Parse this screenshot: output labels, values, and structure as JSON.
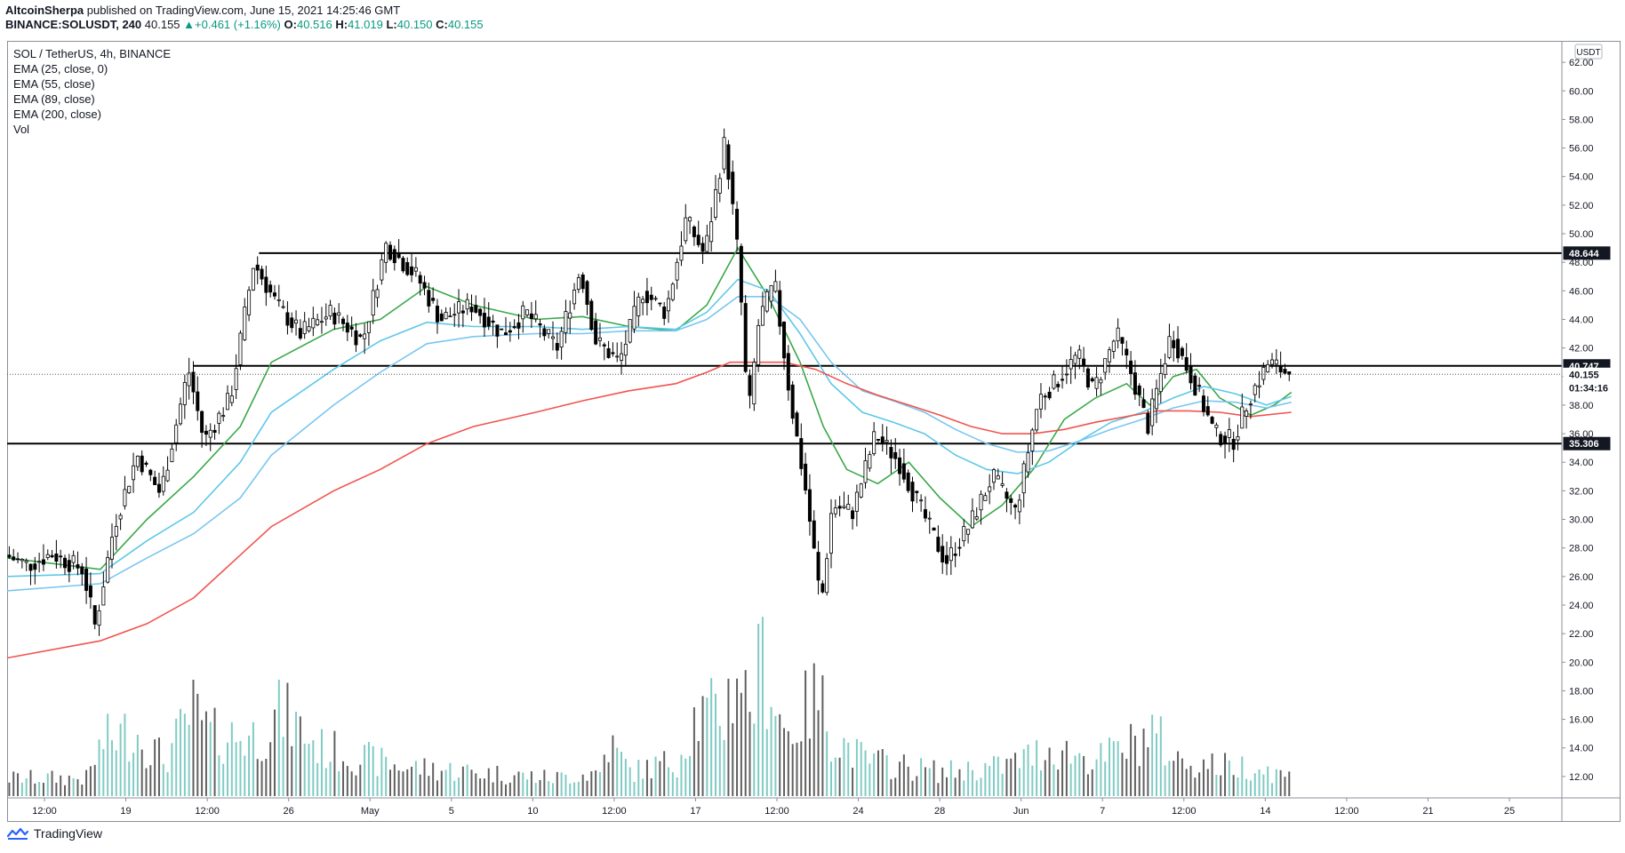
{
  "header": {
    "author": "AltcoinSherpa",
    "published": " published on TradingView.com, June 15, 2021 14:25:46 GMT",
    "symbol": "BINANCE:SOLUSDT, 240",
    "last": "40.155",
    "change": "+0.461 (+1.16%)",
    "o_label": "O:",
    "o_val": "40.516",
    "h_label": "H:",
    "h_val": "41.019",
    "l_label": "L:",
    "l_val": "40.150",
    "c_label": "C:",
    "c_val": "40.155"
  },
  "legend": {
    "title": "SOL / TetherUS, 4h, BINANCE",
    "ema25": "EMA (25, close, 0)",
    "ema55": "EMA (55, close)",
    "ema89": "EMA (89, close)",
    "ema200": "EMA (200, close)",
    "vol": "Vol"
  },
  "footer": {
    "brand": "TradingView"
  },
  "colors": {
    "up": "#ffffff",
    "down": "#000000",
    "ema25": "#3aa84a",
    "ema55": "#5ec8e8",
    "ema89": "#7ac6f0",
    "ema200": "#f0544f",
    "vol_up": "#80cbc4",
    "vol_down": "#606060"
  },
  "chart_data": {
    "type": "candlestick",
    "title": "SOL / TetherUS, 4h, BINANCE",
    "currency": "USDT",
    "ylim": [
      10.5,
      63.5
    ],
    "y_ticks": [
      12,
      14,
      16,
      18,
      20,
      22,
      24,
      26,
      28,
      30,
      32,
      34,
      36,
      38,
      40,
      42,
      44,
      46,
      48,
      50,
      52,
      54,
      56,
      58,
      60,
      62
    ],
    "x_ticks": [
      "12:00",
      "19",
      "12:00",
      "26",
      "May",
      "5",
      "10",
      "12:00",
      "17",
      "12:00",
      "24",
      "28",
      "Jun",
      "7",
      "12:00",
      "14",
      "12:00",
      "21",
      "25"
    ],
    "price_labels": [
      {
        "label": "48.644",
        "value": 48.644,
        "style": "dark"
      },
      {
        "label": "40.747",
        "value": 40.747,
        "style": "dark"
      },
      {
        "label": "40.155",
        "value": 40.155,
        "style": "white"
      },
      {
        "label": "01:34:16",
        "value": 39.2,
        "style": "white"
      },
      {
        "label": "35.306",
        "value": 35.306,
        "style": "dark"
      }
    ],
    "horizontal_levels": [
      {
        "value": 48.644,
        "start": 0.162
      },
      {
        "value": 40.747,
        "start": 0.12
      },
      {
        "value": 35.306,
        "start": 0.0
      }
    ],
    "last_price": 40.155,
    "price_path": [
      [
        0,
        27.5
      ],
      [
        0.015,
        26.8
      ],
      [
        0.03,
        27.6
      ],
      [
        0.05,
        26.5
      ],
      [
        0.058,
        22.5
      ],
      [
        0.07,
        29.5
      ],
      [
        0.085,
        34.5
      ],
      [
        0.1,
        31.8
      ],
      [
        0.118,
        40.5
      ],
      [
        0.128,
        35.5
      ],
      [
        0.145,
        38.5
      ],
      [
        0.16,
        48.0
      ],
      [
        0.175,
        45.0
      ],
      [
        0.19,
        43.0
      ],
      [
        0.21,
        44.5
      ],
      [
        0.23,
        42.5
      ],
      [
        0.245,
        49.2
      ],
      [
        0.265,
        47.0
      ],
      [
        0.28,
        44.0
      ],
      [
        0.3,
        45.0
      ],
      [
        0.32,
        43.0
      ],
      [
        0.335,
        44.5
      ],
      [
        0.355,
        42.0
      ],
      [
        0.37,
        47.5
      ],
      [
        0.38,
        42.5
      ],
      [
        0.395,
        41.0
      ],
      [
        0.41,
        46.0
      ],
      [
        0.425,
        44.5
      ],
      [
        0.438,
        51.0
      ],
      [
        0.45,
        48.5
      ],
      [
        0.463,
        56.5
      ],
      [
        0.472,
        48.0
      ],
      [
        0.478,
        37.0
      ],
      [
        0.485,
        44.0
      ],
      [
        0.495,
        46.5
      ],
      [
        0.505,
        38.5
      ],
      [
        0.515,
        32.0
      ],
      [
        0.525,
        24.0
      ],
      [
        0.532,
        31.0
      ],
      [
        0.545,
        30.5
      ],
      [
        0.56,
        36.0
      ],
      [
        0.575,
        34.0
      ],
      [
        0.59,
        30.5
      ],
      [
        0.605,
        27.0
      ],
      [
        0.62,
        29.5
      ],
      [
        0.635,
        33.0
      ],
      [
        0.65,
        30.5
      ],
      [
        0.665,
        38.5
      ],
      [
        0.675,
        39.5
      ],
      [
        0.69,
        41.5
      ],
      [
        0.7,
        39.0
      ],
      [
        0.715,
        43.0
      ],
      [
        0.725,
        40.0
      ],
      [
        0.735,
        36.5
      ],
      [
        0.75,
        43.0
      ],
      [
        0.765,
        39.5
      ],
      [
        0.778,
        36.0
      ],
      [
        0.79,
        35.5
      ],
      [
        0.8,
        38.5
      ],
      [
        0.813,
        41.0
      ],
      [
        0.826,
        40.155
      ]
    ],
    "series": [
      {
        "name": "EMA (25, close, 0)",
        "points": [
          [
            0,
            27.3
          ],
          [
            0.06,
            26.5
          ],
          [
            0.09,
            30.0
          ],
          [
            0.12,
            33.0
          ],
          [
            0.15,
            36.5
          ],
          [
            0.17,
            41.0
          ],
          [
            0.21,
            43.3
          ],
          [
            0.24,
            44.0
          ],
          [
            0.27,
            46.3
          ],
          [
            0.3,
            45.0
          ],
          [
            0.34,
            44.0
          ],
          [
            0.37,
            44.2
          ],
          [
            0.4,
            43.5
          ],
          [
            0.43,
            43.2
          ],
          [
            0.45,
            45.0
          ],
          [
            0.47,
            49.0
          ],
          [
            0.49,
            45.5
          ],
          [
            0.51,
            41.0
          ],
          [
            0.525,
            36.5
          ],
          [
            0.54,
            33.5
          ],
          [
            0.56,
            32.5
          ],
          [
            0.58,
            34.0
          ],
          [
            0.6,
            31.5
          ],
          [
            0.62,
            29.5
          ],
          [
            0.64,
            31.0
          ],
          [
            0.66,
            33.5
          ],
          [
            0.68,
            37.0
          ],
          [
            0.7,
            38.5
          ],
          [
            0.72,
            39.5
          ],
          [
            0.735,
            38.0
          ],
          [
            0.75,
            40.0
          ],
          [
            0.765,
            40.5
          ],
          [
            0.78,
            38.5
          ],
          [
            0.8,
            37.3
          ],
          [
            0.815,
            38.0
          ],
          [
            0.826,
            38.9
          ]
        ]
      },
      {
        "name": "EMA (55, close)",
        "points": [
          [
            0,
            26.0
          ],
          [
            0.06,
            26.2
          ],
          [
            0.09,
            28.5
          ],
          [
            0.12,
            30.5
          ],
          [
            0.15,
            34.0
          ],
          [
            0.17,
            37.5
          ],
          [
            0.21,
            40.5
          ],
          [
            0.24,
            42.5
          ],
          [
            0.27,
            43.8
          ],
          [
            0.3,
            43.5
          ],
          [
            0.34,
            43.5
          ],
          [
            0.37,
            43.3
          ],
          [
            0.4,
            43.5
          ],
          [
            0.43,
            43.3
          ],
          [
            0.45,
            44.5
          ],
          [
            0.47,
            46.8
          ],
          [
            0.49,
            46.0
          ],
          [
            0.51,
            43.0
          ],
          [
            0.53,
            39.5
          ],
          [
            0.55,
            37.5
          ],
          [
            0.57,
            36.8
          ],
          [
            0.59,
            36.0
          ],
          [
            0.61,
            34.5
          ],
          [
            0.63,
            33.5
          ],
          [
            0.65,
            33.2
          ],
          [
            0.67,
            34.0
          ],
          [
            0.69,
            35.5
          ],
          [
            0.71,
            36.8
          ],
          [
            0.73,
            37.5
          ],
          [
            0.75,
            38.5
          ],
          [
            0.77,
            39.3
          ],
          [
            0.79,
            38.8
          ],
          [
            0.81,
            38.0
          ],
          [
            0.826,
            38.6
          ]
        ]
      },
      {
        "name": "EMA (89, close)",
        "points": [
          [
            0,
            25.0
          ],
          [
            0.06,
            25.5
          ],
          [
            0.09,
            27.3
          ],
          [
            0.12,
            29.0
          ],
          [
            0.15,
            31.5
          ],
          [
            0.17,
            34.5
          ],
          [
            0.21,
            38.0
          ],
          [
            0.24,
            40.3
          ],
          [
            0.27,
            42.3
          ],
          [
            0.3,
            42.8
          ],
          [
            0.34,
            43.0
          ],
          [
            0.37,
            43.0
          ],
          [
            0.4,
            43.2
          ],
          [
            0.43,
            43.2
          ],
          [
            0.45,
            44.0
          ],
          [
            0.47,
            45.6
          ],
          [
            0.49,
            45.6
          ],
          [
            0.51,
            44.0
          ],
          [
            0.53,
            41.0
          ],
          [
            0.55,
            39.0
          ],
          [
            0.57,
            38.3
          ],
          [
            0.59,
            37.5
          ],
          [
            0.61,
            36.3
          ],
          [
            0.63,
            35.3
          ],
          [
            0.65,
            34.7
          ],
          [
            0.67,
            34.8
          ],
          [
            0.69,
            35.5
          ],
          [
            0.71,
            36.3
          ],
          [
            0.73,
            37.0
          ],
          [
            0.75,
            37.8
          ],
          [
            0.77,
            38.3
          ],
          [
            0.79,
            38.2
          ],
          [
            0.81,
            37.8
          ],
          [
            0.826,
            38.2
          ]
        ]
      },
      {
        "name": "EMA (200, close)",
        "points": [
          [
            0,
            20.3
          ],
          [
            0.06,
            21.5
          ],
          [
            0.09,
            22.7
          ],
          [
            0.12,
            24.5
          ],
          [
            0.15,
            27.5
          ],
          [
            0.17,
            29.5
          ],
          [
            0.21,
            32.0
          ],
          [
            0.24,
            33.5
          ],
          [
            0.27,
            35.3
          ],
          [
            0.3,
            36.5
          ],
          [
            0.34,
            37.5
          ],
          [
            0.37,
            38.3
          ],
          [
            0.4,
            39.0
          ],
          [
            0.43,
            39.5
          ],
          [
            0.45,
            40.3
          ],
          [
            0.465,
            41.0
          ],
          [
            0.48,
            41.0
          ],
          [
            0.5,
            41.0
          ],
          [
            0.52,
            40.5
          ],
          [
            0.54,
            39.5
          ],
          [
            0.56,
            38.7
          ],
          [
            0.58,
            38.0
          ],
          [
            0.6,
            37.3
          ],
          [
            0.62,
            36.5
          ],
          [
            0.64,
            36.0
          ],
          [
            0.66,
            36.0
          ],
          [
            0.68,
            36.3
          ],
          [
            0.7,
            36.8
          ],
          [
            0.72,
            37.2
          ],
          [
            0.74,
            37.6
          ],
          [
            0.76,
            37.6
          ],
          [
            0.78,
            37.5
          ],
          [
            0.8,
            37.2
          ],
          [
            0.826,
            37.5
          ]
        ]
      }
    ],
    "volume_ylim": [
      0,
      13
    ],
    "volume_envelope": [
      [
        0,
        1.5
      ],
      [
        0.05,
        1.5
      ],
      [
        0.06,
        4.5
      ],
      [
        0.08,
        5.5
      ],
      [
        0.1,
        3
      ],
      [
        0.118,
        7
      ],
      [
        0.13,
        5
      ],
      [
        0.16,
        5
      ],
      [
        0.175,
        7
      ],
      [
        0.2,
        4
      ],
      [
        0.25,
        2.5
      ],
      [
        0.3,
        2
      ],
      [
        0.35,
        1.5
      ],
      [
        0.38,
        2
      ],
      [
        0.385,
        4.5
      ],
      [
        0.4,
        2
      ],
      [
        0.43,
        3
      ],
      [
        0.44,
        6.5
      ],
      [
        0.46,
        7
      ],
      [
        0.47,
        11.5
      ],
      [
        0.475,
        7
      ],
      [
        0.485,
        11.5
      ],
      [
        0.5,
        5
      ],
      [
        0.52,
        8.5
      ],
      [
        0.53,
        5
      ],
      [
        0.55,
        3
      ],
      [
        0.6,
        2
      ],
      [
        0.64,
        2.5
      ],
      [
        0.67,
        4
      ],
      [
        0.7,
        3
      ],
      [
        0.725,
        4.5
      ],
      [
        0.735,
        5.5
      ],
      [
        0.75,
        3
      ],
      [
        0.78,
        2.5
      ],
      [
        0.8,
        2.5
      ],
      [
        0.826,
        1.5
      ]
    ]
  }
}
